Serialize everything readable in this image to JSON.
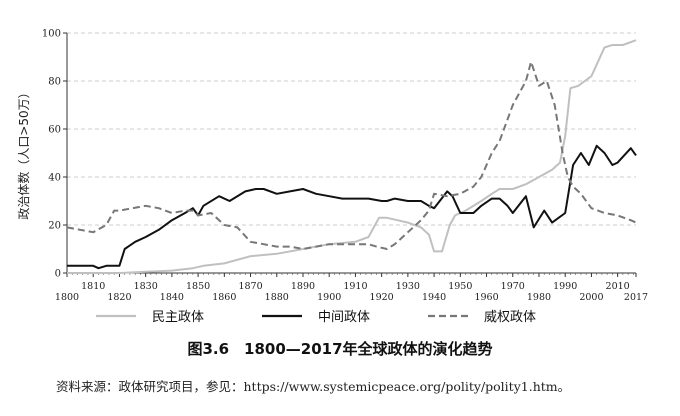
{
  "chart_data": {
    "type": "line",
    "ylabel": "政治体数（人口>50万）",
    "xlabel": "",
    "ylim": [
      0,
      100
    ],
    "xlim": [
      1800,
      2017
    ],
    "yticks": [
      0,
      20,
      40,
      60,
      80,
      100
    ],
    "xticks": [
      1800,
      1810,
      1820,
      1830,
      1840,
      1850,
      1860,
      1870,
      1880,
      1890,
      1900,
      1910,
      1920,
      1930,
      1940,
      1950,
      1960,
      1970,
      1980,
      1990,
      2000,
      2010,
      2017
    ],
    "grid": "horizontal dashed",
    "legend_position": "bottom",
    "series": [
      {
        "name": "民主政体",
        "color": "#c0c0c0",
        "style": "solid",
        "x": [
          1800,
          1820,
          1840,
          1848,
          1852,
          1860,
          1870,
          1880,
          1890,
          1900,
          1910,
          1915,
          1919,
          1922,
          1926,
          1930,
          1935,
          1938,
          1940,
          1943,
          1946,
          1948,
          1952,
          1958,
          1962,
          1965,
          1970,
          1975,
          1980,
          1985,
          1988,
          1990,
          1992,
          1995,
          2000,
          2005,
          2008,
          2012,
          2017
        ],
        "y": [
          0,
          0,
          1,
          2,
          3,
          4,
          7,
          8,
          10,
          12,
          13,
          15,
          23,
          23,
          22,
          21,
          19,
          16,
          9,
          9,
          20,
          24,
          26,
          30,
          33,
          35,
          35,
          37,
          40,
          43,
          46,
          57,
          77,
          78,
          82,
          94,
          95,
          95,
          97
        ]
      },
      {
        "name": "中间政体",
        "color": "#111111",
        "style": "solid",
        "x": [
          1800,
          1810,
          1812,
          1815,
          1820,
          1822,
          1826,
          1830,
          1835,
          1840,
          1845,
          1848,
          1850,
          1852,
          1858,
          1862,
          1868,
          1872,
          1875,
          1880,
          1885,
          1890,
          1895,
          1900,
          1905,
          1910,
          1915,
          1920,
          1922,
          1925,
          1930,
          1935,
          1938,
          1940,
          1945,
          1947,
          1950,
          1955,
          1958,
          1962,
          1965,
          1968,
          1970,
          1975,
          1978,
          1982,
          1985,
          1990,
          1993,
          1996,
          1999,
          2002,
          2005,
          2008,
          2010,
          2015,
          2017
        ],
        "y": [
          3,
          3,
          2,
          3,
          3,
          10,
          13,
          15,
          18,
          22,
          25,
          27,
          24,
          28,
          32,
          30,
          34,
          35,
          35,
          33,
          34,
          35,
          33,
          32,
          31,
          31,
          31,
          30,
          30,
          31,
          30,
          30,
          28,
          27,
          34,
          32,
          25,
          25,
          28,
          31,
          31,
          28,
          25,
          32,
          19,
          26,
          21,
          25,
          45,
          50,
          45,
          53,
          50,
          45,
          46,
          52,
          49
        ]
      },
      {
        "name": "威权政体",
        "color": "#777777",
        "style": "dashed",
        "x": [
          1800,
          1805,
          1810,
          1815,
          1818,
          1820,
          1825,
          1830,
          1835,
          1840,
          1845,
          1848,
          1850,
          1855,
          1860,
          1865,
          1870,
          1875,
          1880,
          1885,
          1890,
          1895,
          1900,
          1905,
          1910,
          1915,
          1918,
          1922,
          1925,
          1930,
          1935,
          1938,
          1940,
          1945,
          1950,
          1955,
          1958,
          1962,
          1965,
          1970,
          1975,
          1977,
          1980,
          1983,
          1986,
          1989,
          1991,
          1993,
          1996,
          2000,
          2005,
          2010,
          2015,
          2017
        ],
        "y": [
          19,
          18,
          17,
          20,
          26,
          26,
          27,
          28,
          27,
          25,
          26,
          26,
          24,
          25,
          20,
          19,
          13,
          12,
          11,
          11,
          10,
          11,
          12,
          12,
          12,
          12,
          11,
          10,
          12,
          17,
          22,
          26,
          33,
          32,
          33,
          36,
          40,
          50,
          55,
          70,
          80,
          88,
          78,
          80,
          70,
          50,
          40,
          36,
          33,
          27,
          25,
          24,
          22,
          21
        ]
      }
    ]
  },
  "caption": "图3.6　1800—2017年全球政体的演化趋势",
  "source": "资料来源：政体研究项目，参见：https://www.systemicpeace.org/polity/polity1.htm。"
}
